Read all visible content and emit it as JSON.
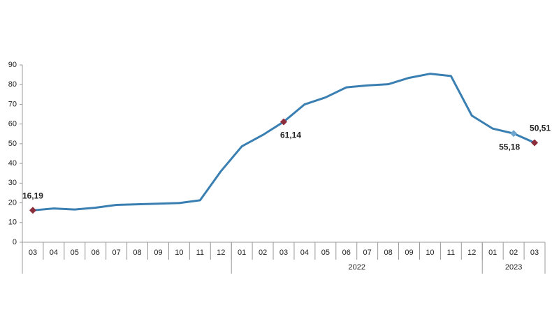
{
  "chart_data": {
    "type": "line",
    "categories": [
      "03",
      "04",
      "05",
      "06",
      "07",
      "08",
      "09",
      "10",
      "11",
      "12",
      "01",
      "02",
      "03",
      "04",
      "05",
      "06",
      "07",
      "08",
      "09",
      "10",
      "11",
      "12",
      "01",
      "02",
      "03"
    ],
    "groups": [
      {
        "label": null,
        "size": 10
      },
      {
        "label": "2022",
        "size": 12
      },
      {
        "label": "2023",
        "size": 3
      }
    ],
    "series": [
      {
        "name": null,
        "color": "#3a7fb2",
        "values": [
          16.19,
          17.14,
          16.59,
          17.53,
          18.95,
          19.25,
          19.58,
          19.89,
          21.31,
          36.08,
          48.69,
          54.44,
          61.14,
          69.97,
          73.5,
          78.62,
          79.6,
          80.21,
          83.45,
          85.51,
          84.39,
          64.27,
          57.68,
          55.18,
          50.51
        ],
        "value_labels": [
          "16,19",
          null,
          null,
          null,
          null,
          null,
          null,
          null,
          null,
          null,
          null,
          null,
          "61,14",
          null,
          null,
          null,
          null,
          null,
          null,
          null,
          null,
          null,
          null,
          "55,18",
          "50,51"
        ],
        "marker_colors": [
          "#8b2d3a",
          null,
          null,
          null,
          null,
          null,
          null,
          null,
          null,
          null,
          null,
          null,
          "#8b2d3a",
          null,
          null,
          null,
          null,
          null,
          null,
          null,
          null,
          null,
          null,
          "#6fa6cf",
          "#8b2d3a"
        ]
      }
    ],
    "ylim": [
      0,
      90
    ],
    "yticks": [
      0,
      10,
      20,
      30,
      40,
      50,
      60,
      70,
      80,
      90
    ],
    "grid": false
  }
}
